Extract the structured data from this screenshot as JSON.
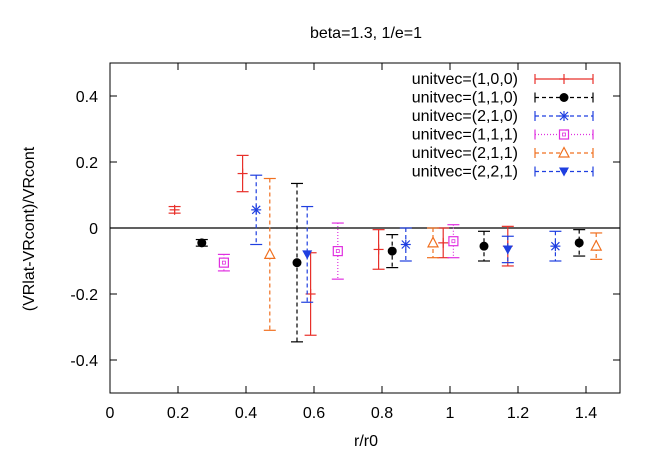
{
  "chart_data": {
    "type": "scatter",
    "title": "beta=1.3, 1/e=1",
    "xlabel": "r/r0",
    "ylabel": "(VRlat-VRcont)/VRcont",
    "xlim": [
      0,
      1.5
    ],
    "ylim": [
      -0.5,
      0.5
    ],
    "xticks": [
      0,
      0.2,
      0.4,
      0.6,
      0.8,
      1,
      1.2,
      1.4
    ],
    "xtick_labels": [
      "0",
      "0.2",
      "0.4",
      "0.6",
      "0.8",
      "1",
      "1.2",
      "1.4"
    ],
    "yticks": [
      -0.4,
      -0.2,
      0,
      0.2,
      0.4
    ],
    "ytick_labels": [
      "-0.4",
      "-0.2",
      "0",
      "0.2",
      "0.4"
    ],
    "zero_line": true,
    "grid": false,
    "legend_position": "top-right",
    "series": [
      {
        "name": "unitvec=(1,0,0)",
        "color": "#e8302a",
        "marker": "plus",
        "dash": "solid",
        "points": [
          {
            "x": 0.19,
            "y": 0.055,
            "err": 0.01
          },
          {
            "x": 0.39,
            "y": 0.165,
            "err": 0.055
          },
          {
            "x": 0.59,
            "y": -0.2,
            "err": 0.125
          },
          {
            "x": 0.79,
            "y": -0.065,
            "err": 0.06
          },
          {
            "x": 0.98,
            "y": -0.045,
            "err": 0.045
          },
          {
            "x": 1.17,
            "y": -0.055,
            "err": 0.06
          }
        ]
      },
      {
        "name": "unitvec=(1,1,0)",
        "color": "#000000",
        "marker": "filled-circle",
        "dash": "4,3",
        "points": [
          {
            "x": 0.27,
            "y": -0.045,
            "err": 0.01
          },
          {
            "x": 0.55,
            "y": -0.105,
            "err": 0.24
          },
          {
            "x": 0.83,
            "y": -0.07,
            "err": 0.05
          },
          {
            "x": 1.1,
            "y": -0.055,
            "err": 0.045
          },
          {
            "x": 1.38,
            "y": -0.045,
            "err": 0.04
          }
        ]
      },
      {
        "name": "unitvec=(2,1,0)",
        "color": "#1f3fe0",
        "marker": "star",
        "dash": "4,3",
        "points": [
          {
            "x": 0.43,
            "y": 0.055,
            "err": 0.105
          },
          {
            "x": 0.87,
            "y": -0.05,
            "err": 0.05
          },
          {
            "x": 1.31,
            "y": -0.055,
            "err": 0.045
          }
        ]
      },
      {
        "name": "unitvec=(1,1,1)",
        "color": "#e030e0",
        "marker": "open-square",
        "dash": "1,2",
        "points": [
          {
            "x": 0.335,
            "y": -0.105,
            "err": 0.025
          },
          {
            "x": 0.67,
            "y": -0.07,
            "err": 0.085
          },
          {
            "x": 1.01,
            "y": -0.04,
            "err": 0.05
          }
        ]
      },
      {
        "name": "unitvec=(2,1,1)",
        "color": "#f07020",
        "marker": "open-triangle",
        "dash": "4,3",
        "points": [
          {
            "x": 0.47,
            "y": -0.08,
            "err": 0.23
          },
          {
            "x": 0.95,
            "y": -0.045,
            "err": 0.045
          },
          {
            "x": 1.43,
            "y": -0.055,
            "err": 0.04
          }
        ]
      },
      {
        "name": "unitvec=(2,2,1)",
        "color": "#1f3fe0",
        "marker": "filled-triangle-down",
        "dash": "4,3",
        "points": [
          {
            "x": 0.58,
            "y": -0.08,
            "err": 0.145
          },
          {
            "x": 1.17,
            "y": -0.065,
            "err": 0.04
          }
        ]
      }
    ]
  }
}
